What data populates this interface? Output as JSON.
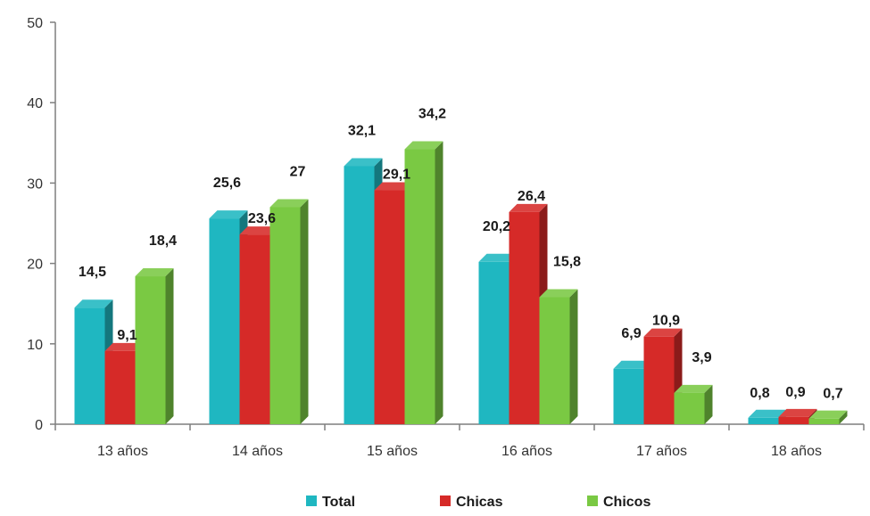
{
  "chart_data": {
    "type": "bar",
    "categories": [
      "13 años",
      "14 años",
      "15 años",
      "16 años",
      "17 años",
      "18 años"
    ],
    "series": [
      {
        "name": "Total",
        "values": [
          14.5,
          25.6,
          32.1,
          20.2,
          6.9,
          0.8
        ],
        "labels": [
          "14,5",
          "25,6",
          "32,1",
          "20,2",
          "6,9",
          "0,8"
        ],
        "color": "#1fb7c1"
      },
      {
        "name": "Chicas",
        "values": [
          9.1,
          23.6,
          29.1,
          26.4,
          10.9,
          0.9
        ],
        "labels": [
          "9,1",
          "23,6",
          "29,1",
          "26,4",
          "10,9",
          "0,9"
        ],
        "color": "#d62a28"
      },
      {
        "name": "Chicos",
        "values": [
          18.4,
          27,
          34.2,
          15.8,
          3.9,
          0.7
        ],
        "labels": [
          "18,4",
          "27",
          "34,2",
          "15,8",
          "3,9",
          "0,7"
        ],
        "color": "#7ac943"
      }
    ],
    "yticks": [
      "0",
      "10",
      "20",
      "30",
      "40",
      "50"
    ],
    "ylim": [
      0,
      50
    ],
    "legend_position": "bottom",
    "grid": false,
    "style": "3d-column"
  }
}
